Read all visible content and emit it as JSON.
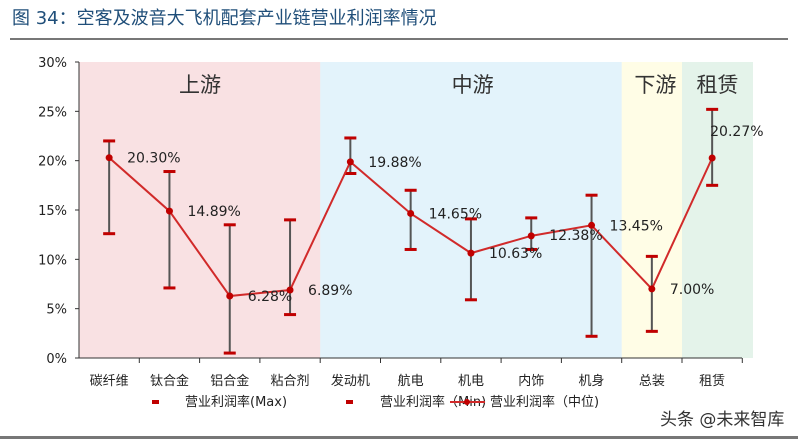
{
  "title": "图 34：空客及波音大飞机配套产业链营业利润率情况",
  "watermark": "头条 @未来智库",
  "chart_data": {
    "type": "line",
    "categories": [
      "碳纤维",
      "钛合金",
      "铝合金",
      "粘合剂",
      "发动机",
      "航电",
      "机电",
      "内饰",
      "机身",
      "总装",
      "租赁"
    ],
    "regions": [
      {
        "label": "上游",
        "from": 0,
        "to": 3,
        "color": "#f9e1e3"
      },
      {
        "label": "中游",
        "from": 4,
        "to": 8,
        "color": "#e3f3fb"
      },
      {
        "label": "下游",
        "from": 9,
        "to": 9,
        "color": "#fffde6"
      },
      {
        "label": "租赁",
        "from": 10,
        "to": 10,
        "color": "#e4f3ea"
      }
    ],
    "ylim": [
      0,
      30
    ],
    "yticks": [
      "0%",
      "5%",
      "10%",
      "15%",
      "20%",
      "25%",
      "30%"
    ],
    "series": [
      {
        "name": "营业利润率(Max)",
        "values": [
          22.0,
          18.9,
          13.5,
          14.0,
          22.3,
          17.0,
          14.1,
          14.2,
          16.5,
          10.3,
          25.2
        ]
      },
      {
        "name": "营业利润率（Min)",
        "values": [
          12.6,
          7.1,
          0.5,
          4.4,
          18.7,
          11.0,
          5.9,
          11.0,
          2.2,
          2.7,
          17.5
        ]
      },
      {
        "name": "营业利润率（中位)",
        "values": [
          20.3,
          14.89,
          6.28,
          6.89,
          19.88,
          14.65,
          10.63,
          12.38,
          13.45,
          7.0,
          20.27
        ],
        "labels": [
          "20.30%",
          "14.89%",
          "6.28%",
          "6.89%",
          "19.88%",
          "14.65%",
          "10.63%",
          "12.38%",
          "13.45%",
          "7.00%",
          "20.27%"
        ]
      }
    ],
    "colors": {
      "line": "#d12a2a",
      "cap": "#c00000",
      "bar": "#555555"
    }
  }
}
